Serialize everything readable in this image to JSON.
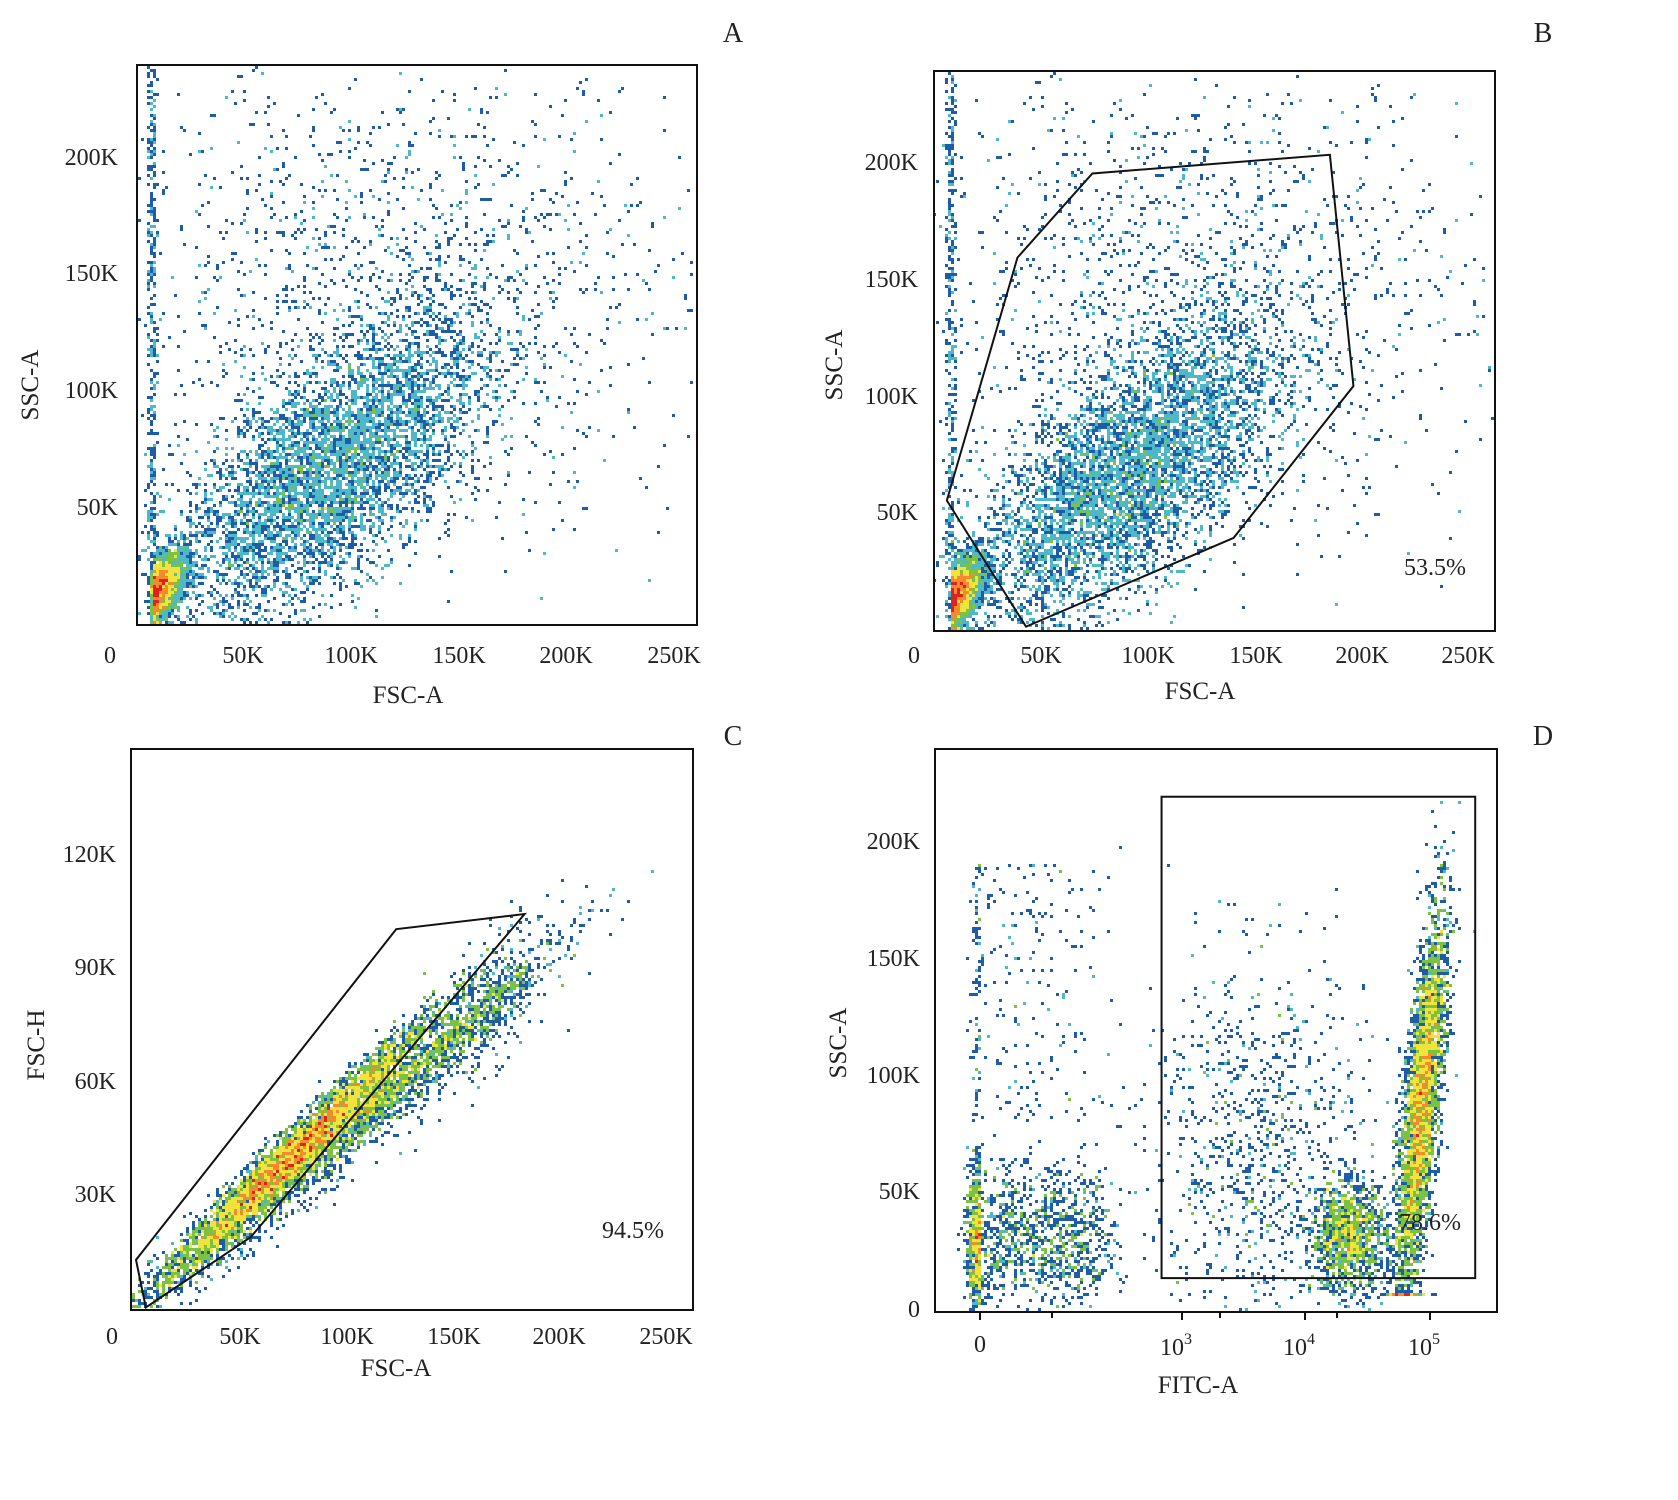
{
  "chart_data": [
    {
      "panel": "A",
      "type": "heatmap",
      "xlabel": "FSC-A",
      "ylabel": "SSC-A",
      "xlim": [
        0,
        262000
      ],
      "ylim": [
        0,
        239000
      ],
      "xticks": [
        "0",
        "50K",
        "100K",
        "150K",
        "200K",
        "250K"
      ],
      "yticks": [
        "50K",
        "100K",
        "150K",
        "200K"
      ],
      "gate": null,
      "gate_percent": null
    },
    {
      "panel": "B",
      "type": "heatmap",
      "xlabel": "FSC-A",
      "ylabel": "SSC-A",
      "xlim": [
        0,
        262000
      ],
      "ylim": [
        0,
        239000
      ],
      "xticks": [
        "0",
        "50K",
        "100K",
        "150K",
        "200K",
        "250K"
      ],
      "yticks": [
        "50K",
        "100K",
        "150K",
        "200K"
      ],
      "gate": [
        [
          6000,
          55000
        ],
        [
          39000,
          159000
        ],
        [
          74000,
          195000
        ],
        [
          185000,
          203000
        ],
        [
          196000,
          104000
        ],
        [
          140000,
          39000
        ],
        [
          43000,
          1000
        ]
      ],
      "gate_percent": "53.5%"
    },
    {
      "panel": "C",
      "type": "heatmap",
      "xlabel": "FSC-A",
      "ylabel": "FSC-H",
      "xlim": [
        0,
        262000
      ],
      "ylim": [
        0,
        147000
      ],
      "xticks": [
        "0",
        "50K",
        "100K",
        "150K",
        "200K",
        "250K"
      ],
      "yticks": [
        "30K",
        "60K",
        "90K",
        "120K"
      ],
      "gate": [
        [
          1400,
          12600
        ],
        [
          123000,
          100000
        ],
        [
          183000,
          104000
        ],
        [
          150000,
          82000
        ],
        [
          55000,
          18600
        ],
        [
          6000,
          0
        ]
      ],
      "gate_percent": "94.5%"
    },
    {
      "panel": "D",
      "type": "heatmap",
      "xlabel": "FITC-A",
      "ylabel": "SSC-A",
      "xscale": "biexponential",
      "ylim": [
        0,
        240000
      ],
      "xticks": [
        {
          "base": "0",
          "exp": ""
        },
        {
          "base": "10",
          "exp": "3"
        },
        {
          "base": "10",
          "exp": "4"
        },
        {
          "base": "10",
          "exp": "5"
        }
      ],
      "yticks": [
        "0",
        "50K",
        "100K",
        "150K",
        "200K"
      ],
      "gate": {
        "x": [
          700,
          230000
        ],
        "y": [
          12400,
          219000
        ]
      },
      "gate_percent": "78.6%"
    }
  ],
  "colors": {
    "low": "#1f5ca8",
    "mid_low": "#4fb8c8",
    "mid": "#7cc242",
    "mid_high": "#f2e33c",
    "high": "#f38a2c",
    "max": "#e3201b"
  }
}
